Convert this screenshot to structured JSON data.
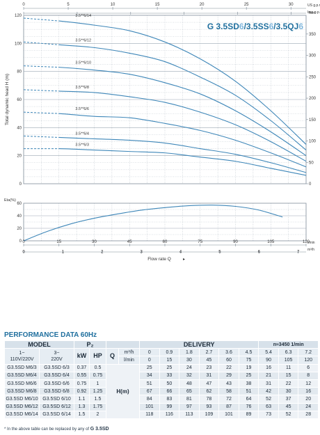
{
  "chart_data": [
    {
      "type": "line",
      "title": "G 3.5SD6/3.5SS6/3.5QJ6",
      "title_parts": [
        "G 3.5SD",
        "6",
        "/3.5SS",
        "6",
        "/3.5QJ",
        "6"
      ],
      "ylabel": "Total dynamic head  H (m)",
      "y2label": "feet",
      "x_top_label": "US g.p.m",
      "x_top2_label": "Imp g.p.m",
      "xlabel": "Flow rate  Q",
      "x_unit_lmin": "l/min",
      "x_unit_m3h": "m³/h",
      "xlim": [
        0,
        120
      ],
      "ylim": [
        0,
        120
      ],
      "y_ticks": [
        0,
        20,
        40,
        60,
        80,
        100,
        120
      ],
      "y2_ticks": [
        0,
        50,
        100,
        150,
        200,
        250,
        300,
        350
      ],
      "x_top_ticks": [
        0,
        5,
        10,
        15,
        20,
        25,
        30
      ],
      "x_top2_ticks": [
        0,
        5,
        10,
        15,
        20,
        25
      ],
      "x_lmin_ticks": [
        0,
        15,
        30,
        45,
        60,
        75,
        90,
        105,
        120
      ],
      "x_m3h_ticks": [
        0,
        1,
        2,
        3,
        4,
        5,
        6,
        7
      ],
      "grid": true,
      "x": [
        0,
        15,
        30,
        45,
        60,
        75,
        90,
        105,
        120
      ],
      "series": [
        {
          "name": "3.5**6/14",
          "values": [
            118,
            116,
            113,
            109,
            101,
            89,
            73,
            52,
            28
          ]
        },
        {
          "name": "3.5**6/12",
          "values": [
            101,
            99,
            97,
            93,
            87,
            76,
            63,
            45,
            24
          ]
        },
        {
          "name": "3.5**6/10",
          "values": [
            84,
            83,
            81,
            78,
            72,
            64,
            52,
            37,
            20
          ]
        },
        {
          "name": "3.5**6/8",
          "values": [
            67,
            66,
            65,
            62,
            58,
            51,
            42,
            30,
            16
          ]
        },
        {
          "name": "3.5**6/6",
          "values": [
            51,
            50,
            48,
            47,
            43,
            38,
            31,
            22,
            12
          ]
        },
        {
          "name": "3.5**6/4",
          "values": [
            34,
            33,
            32,
            31,
            29,
            25,
            21,
            15,
            8
          ]
        },
        {
          "name": "3.5**6/3",
          "values": [
            25,
            25,
            24,
            23,
            22,
            19,
            16,
            11,
            6
          ]
        }
      ]
    },
    {
      "type": "line",
      "ylabel": "Eta(%)",
      "ylim": [
        0,
        60
      ],
      "y_ticks": [
        0,
        20,
        40,
        60
      ],
      "xlim": [
        0,
        120
      ],
      "x": [
        0,
        10,
        20,
        30,
        40,
        50,
        60,
        70,
        80,
        90,
        100,
        110
      ],
      "series": [
        {
          "values": [
            0,
            15,
            27,
            36,
            43,
            49,
            53,
            56,
            57,
            55,
            49,
            38
          ]
        }
      ]
    }
  ],
  "performance": {
    "title": "PERFORMANCE  DATA  60Hz",
    "model_label": "MODEL",
    "p2_label": "P₂",
    "delivery_label": "DELIVERY",
    "speed_label": "n≈3450 1/min",
    "col1_label": "1~\n110V/220V",
    "col2_label": "3~\n220V",
    "kw_label": "kW",
    "hp_label": "HP",
    "q_label": "Q",
    "q_unit1": "m³/h",
    "q_unit2": "l/min",
    "h_label": "H(m)",
    "q_m3h": [
      "0",
      "0.9",
      "1.8",
      "2.7",
      "3.6",
      "4.5",
      "5.4",
      "6.3",
      "7.2"
    ],
    "q_lmin": [
      "0",
      "15",
      "30",
      "45",
      "60",
      "75",
      "90",
      "105",
      "120"
    ],
    "rows": [
      {
        "m1": "G3.5SD M6/3",
        "m3": "G3.5SD 6/3",
        "kw": "0.37",
        "hp": "0.5",
        "h": [
          "25",
          "25",
          "24",
          "23",
          "22",
          "19",
          "16",
          "11",
          "6"
        ]
      },
      {
        "m1": "G3.5SD M6/4",
        "m3": "G3.5SD 6/4",
        "kw": "0.55",
        "hp": "0.75",
        "h": [
          "34",
          "33",
          "32",
          "31",
          "29",
          "25",
          "21",
          "15",
          "8"
        ]
      },
      {
        "m1": "G3.5SD M6/6",
        "m3": "G3.5SD 6/6",
        "kw": "0.75",
        "hp": "1",
        "h": [
          "51",
          "50",
          "48",
          "47",
          "43",
          "38",
          "31",
          "22",
          "12"
        ]
      },
      {
        "m1": "G3.5SD M6/8",
        "m3": "G3.5SD 6/8",
        "kw": "0.92",
        "hp": "1.25",
        "h": [
          "67",
          "66",
          "65",
          "62",
          "58",
          "51",
          "42",
          "30",
          "16"
        ]
      },
      {
        "m1": "G3.5SD M6/10",
        "m3": "G3.5SD 6/10",
        "kw": "1.1",
        "hp": "1.5",
        "h": [
          "84",
          "83",
          "81",
          "78",
          "72",
          "64",
          "52",
          "37",
          "20"
        ]
      },
      {
        "m1": "G3.5SD M6/12",
        "m3": "G3.5SD 6/12",
        "kw": "1.3",
        "hp": "1.75",
        "h": [
          "101",
          "99",
          "97",
          "93",
          "87",
          "76",
          "63",
          "45",
          "24"
        ]
      },
      {
        "m1": "G3.5SD M6/14",
        "m3": "G3.5SD 6/14",
        "kw": "1.5",
        "hp": "2",
        "h": [
          "118",
          "116",
          "113",
          "109",
          "101",
          "89",
          "73",
          "52",
          "28"
        ]
      }
    ],
    "footnote_prefix": "* In the above table can be replaced by any of ",
    "footnote_bold": "G 3.5SD"
  },
  "colors": {
    "curve": "#3d86b8",
    "grid": "#9aa6b2",
    "accent": "#2a86c0",
    "title_dark": "#1f6f9e",
    "title_light": "#7fb6dc"
  }
}
